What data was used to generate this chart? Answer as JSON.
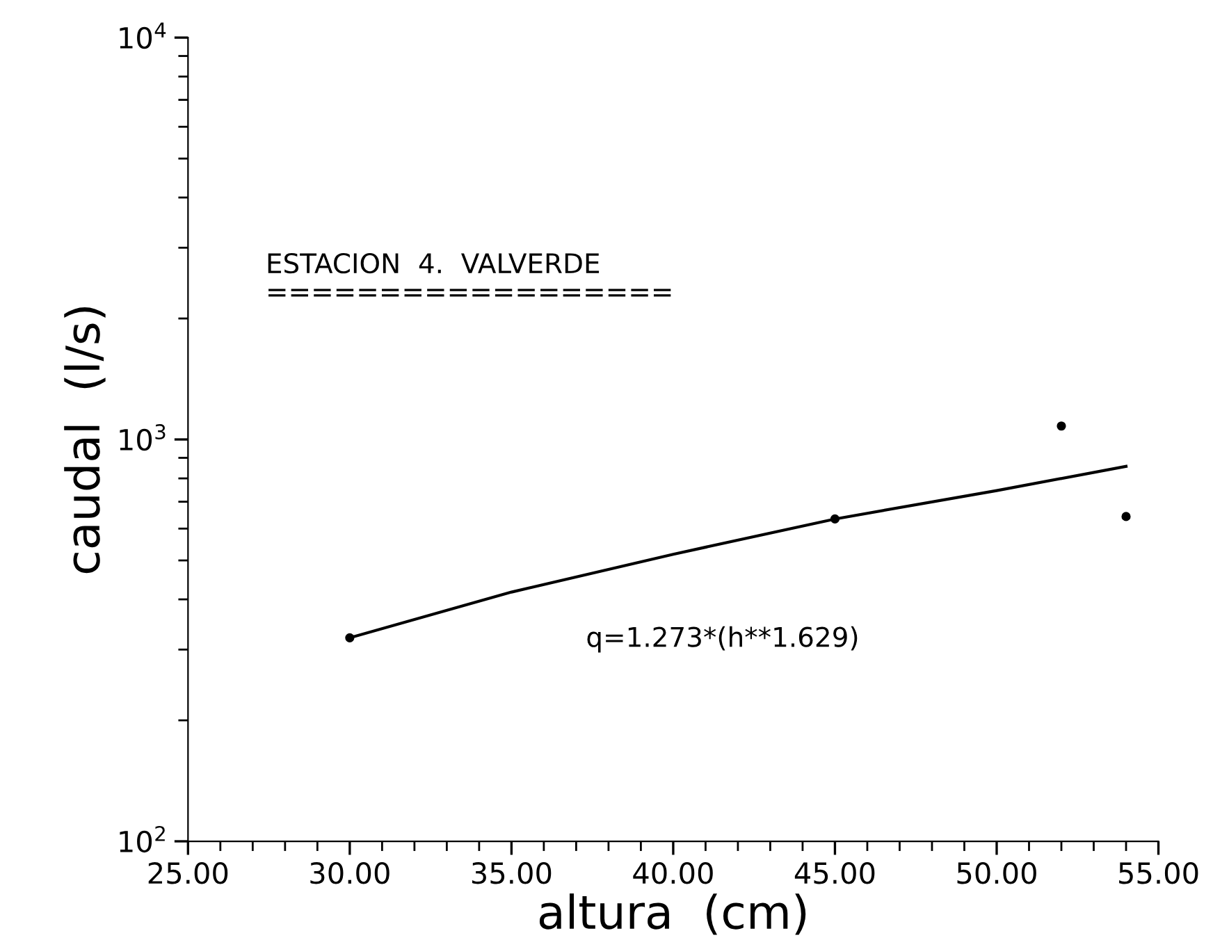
{
  "chart_data": {
    "type": "scatter",
    "xlabel": "altura  (cm)",
    "ylabel": "caudal  (l/s)",
    "series": [
      {
        "color": "#000000",
        "marker": "circle",
        "x": [
          30,
          45,
          52,
          54
        ],
        "values": [
          321,
          634,
          1080,
          643
        ]
      },
      {
        "type": "line",
        "color": "#000000",
        "marker": "none",
        "line_style": "solid",
        "x": [
          30,
          35,
          40,
          45,
          50,
          54
        ],
        "values": [
          321,
          417,
          518,
          634,
          746,
          857
        ]
      }
    ],
    "log": "y",
    "xlim": [
      25,
      55
    ],
    "xticks": [
      {
        "value": 25,
        "label": "25.00"
      },
      {
        "value": 30,
        "label": "30.00"
      },
      {
        "value": 35,
        "label": "35.00"
      },
      {
        "value": 40,
        "label": "40.00"
      },
      {
        "value": 45,
        "label": "45.00"
      },
      {
        "value": 50,
        "label": "50.00"
      },
      {
        "value": 55,
        "label": "55.00"
      }
    ],
    "ylim": [
      100,
      10000
    ],
    "yticks": [
      {
        "value": 100,
        "label": "10$^{2}$"
      },
      {
        "value": 1000,
        "label": "10$^{3}$"
      },
      {
        "value": 10000,
        "label": "10$^{4}$"
      }
    ],
    "grid": false,
    "legend": false,
    "annotations": [
      "ESTACION  4.  VALVERDE",
      "==================",
      "q=1.273*(h**1.629)"
    ]
  }
}
